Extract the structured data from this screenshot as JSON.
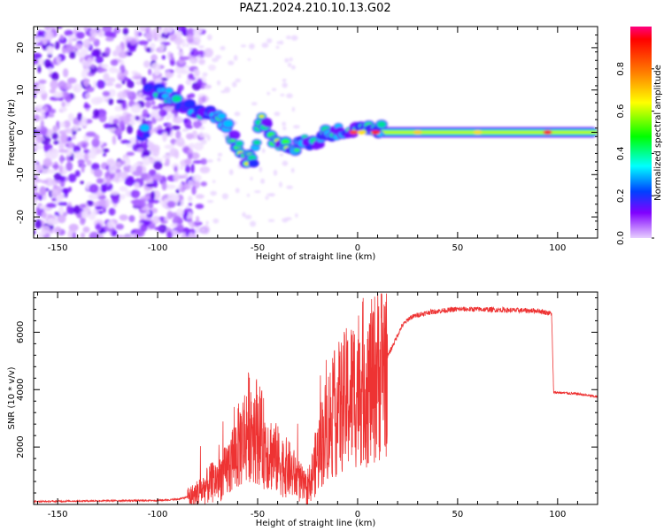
{
  "title": "PAZ1.2024.210.10.13.G02",
  "chart_data": [
    {
      "type": "heatmap",
      "xlabel": "Height of straight line (km)",
      "ylabel": "Frequency (Hz)",
      "xlim": [
        -162,
        120
      ],
      "ylim": [
        -25,
        25
      ],
      "xticks": [
        -150,
        -100,
        -50,
        0,
        50,
        100
      ],
      "yticks": [
        -20,
        -10,
        0,
        10,
        20
      ],
      "colorbar": {
        "label": "Normalized spectral amplitude",
        "range": [
          0,
          1
        ],
        "ticks": [
          "0.0",
          "0.2",
          "0.4",
          "0.6",
          "0.8"
        ],
        "colormap": "gist_rainbow_r"
      },
      "ridge": {
        "x": [
          -105,
          -98,
          -92,
          -86,
          -80,
          -74,
          -68,
          -64,
          -60,
          -56,
          -52,
          -49,
          -46,
          -43,
          -40,
          -37,
          -34,
          -31,
          -28,
          -25,
          -22,
          -18,
          -14,
          -10,
          -6,
          -2,
          2,
          6,
          10,
          20,
          40,
          60,
          80,
          100,
          120
        ],
        "y": [
          10,
          9,
          8,
          6,
          5,
          4,
          3,
          0,
          -3,
          -6,
          -7,
          3,
          2,
          -1,
          -3,
          -4,
          -3,
          -4,
          -2,
          -3,
          -3,
          -1,
          0,
          0,
          1,
          0,
          3,
          0,
          1,
          0,
          0,
          0,
          0,
          0,
          0
        ]
      }
    },
    {
      "type": "line",
      "xlabel": "Height of straight line (km)",
      "ylabel": "SNR (10 * v/v)",
      "xlim": [
        -162,
        120
      ],
      "ylim": [
        0,
        7400
      ],
      "xticks": [
        -150,
        -100,
        -50,
        0,
        50,
        100
      ],
      "yticks": [
        2000,
        4000,
        6000
      ],
      "color": "#ee3333",
      "series": [
        {
          "x": [
            -162,
            -140,
            -120,
            -100,
            -90,
            -82,
            -78,
            -72,
            -66,
            -62,
            -58,
            -54,
            -50,
            -46,
            -42,
            -38,
            -34,
            -30,
            -27,
            -25,
            -22,
            -18,
            -14,
            -10,
            -6,
            -2,
            2,
            6,
            10,
            14,
            18,
            22,
            26,
            30,
            36,
            42,
            50,
            60,
            70,
            80,
            90,
            97,
            98,
            100,
            110,
            120
          ],
          "y": [
            100,
            120,
            130,
            140,
            180,
            300,
            500,
            800,
            1100,
            1700,
            2200,
            2800,
            2600,
            2000,
            1700,
            1400,
            1200,
            900,
            600,
            500,
            1200,
            2200,
            2900,
            3300,
            3600,
            3900,
            4300,
            4100,
            4600,
            5000,
            5600,
            6200,
            6500,
            6600,
            6700,
            6750,
            6800,
            6800,
            6780,
            6760,
            6750,
            6650,
            3900,
            3900,
            3850,
            3750
          ]
        }
      ]
    }
  ]
}
